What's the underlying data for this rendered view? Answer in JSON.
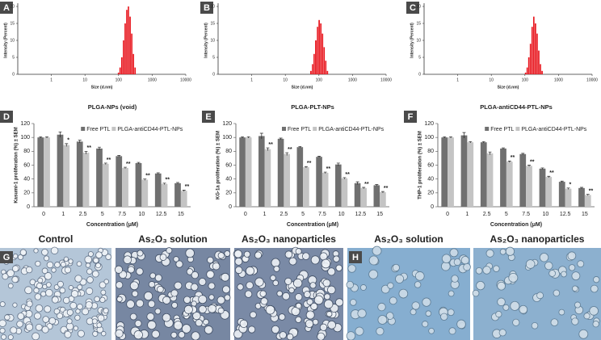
{
  "chart_data": [
    {
      "type": "histogram",
      "panel": "A",
      "xlabel": "Size (d.nm)",
      "ylabel": "Intensity (Percent)",
      "color": "#e8141c",
      "log_x": true,
      "xlim": [
        0.1,
        10000
      ],
      "xticks": [
        1,
        10,
        100,
        1000,
        10000
      ],
      "ylim": [
        0,
        20
      ],
      "yticks": [
        0,
        5,
        10,
        15,
        20
      ],
      "bins": [
        95,
        106,
        119,
        134,
        150,
        168,
        188,
        210,
        236,
        264,
        296,
        332
      ],
      "counts": [
        0.5,
        2,
        5,
        10,
        15,
        19,
        20,
        17,
        12,
        6,
        2
      ]
    },
    {
      "type": "histogram",
      "panel": "B",
      "xlabel": "Size (d.nm)",
      "ylabel": "Intensity (Percent)",
      "color": "#e8141c",
      "log_x": true,
      "xlim": [
        0.1,
        10000
      ],
      "xticks": [
        1,
        10,
        100,
        1000,
        10000
      ],
      "ylim": [
        0,
        20
      ],
      "yticks": [
        0,
        5,
        10,
        15,
        20
      ],
      "bins": [
        55,
        62,
        69,
        77,
        87,
        97,
        109,
        122,
        137,
        153,
        171,
        192
      ],
      "counts": [
        1,
        3,
        6,
        10,
        14,
        16,
        15,
        12,
        8,
        4,
        1
      ]
    },
    {
      "type": "histogram",
      "panel": "C",
      "xlabel": "Size (d.nm)",
      "ylabel": "Intensity (Percent)",
      "color": "#e8141c",
      "log_x": true,
      "xlim": [
        0.1,
        10000
      ],
      "xticks": [
        1,
        10,
        100,
        1000,
        10000
      ],
      "ylim": [
        0,
        20
      ],
      "yticks": [
        0,
        5,
        10,
        15,
        20
      ],
      "bins": [
        100,
        112,
        125,
        140,
        157,
        176,
        197,
        221,
        247,
        277,
        310,
        348
      ],
      "counts": [
        0.5,
        2,
        5,
        9,
        14,
        17,
        15,
        12,
        7,
        3,
        1
      ]
    },
    {
      "type": "bar",
      "panel": "D",
      "title": "PLGA-NPs (void)",
      "xlabel": "Concentration (μM)",
      "ylabel": "Kasumi-1 proliferation (%) ± SEM",
      "categories": [
        "0",
        "1",
        "2.5",
        "5",
        "7.5",
        "10",
        "12.5",
        "15"
      ],
      "ylim": [
        0,
        120
      ],
      "yticks": [
        0,
        20,
        40,
        60,
        80,
        100,
        120
      ],
      "series": [
        {
          "name": "Free PTL",
          "color": "#707070",
          "values": [
            100,
            104,
            94,
            84,
            73,
            63,
            48,
            34
          ],
          "errors": [
            1,
            4,
            2,
            2,
            1,
            1,
            1,
            1
          ]
        },
        {
          "name": "PLGA-antiCD44-PTL-NPs",
          "color": "#c4c4c4",
          "values": [
            100,
            89,
            78,
            62,
            56,
            39,
            33,
            23
          ],
          "errors": [
            1,
            2,
            2,
            1,
            1,
            1,
            1,
            1
          ],
          "annotations": [
            null,
            "*",
            "**",
            "**",
            "**",
            "**",
            "**",
            "**"
          ]
        }
      ]
    },
    {
      "type": "bar",
      "panel": "E",
      "title": "PLGA-PLT-NPs",
      "xlabel": "Concentration (μM)",
      "ylabel": "KG-1a proliferation (%) ± SEM",
      "categories": [
        "0",
        "1",
        "2.5",
        "5",
        "7.5",
        "10",
        "12.5",
        "15"
      ],
      "ylim": [
        0,
        120
      ],
      "yticks": [
        0,
        20,
        40,
        60,
        80,
        100,
        120
      ],
      "series": [
        {
          "name": "Free PTL",
          "color": "#707070",
          "values": [
            100,
            102,
            98,
            86,
            72,
            61,
            34,
            31
          ],
          "errors": [
            1,
            4,
            1,
            1,
            1,
            2,
            2,
            1
          ]
        },
        {
          "name": "PLGA-antiCD44-PTL-NPs",
          "color": "#c4c4c4",
          "values": [
            100,
            83,
            76,
            57,
            49,
            41,
            27,
            21
          ],
          "errors": [
            1,
            2,
            2,
            1,
            1,
            1,
            1,
            1
          ],
          "annotations": [
            null,
            "**",
            "**",
            "**",
            "**",
            "**",
            "**",
            "**"
          ]
        }
      ]
    },
    {
      "type": "bar",
      "panel": "F",
      "title": "PLGA-antiCD44-PTL-NPs",
      "xlabel": "Concentration (μM)",
      "ylabel": "THP-1 proliferation (%) ± SEM",
      "categories": [
        "0",
        "1",
        "2.5",
        "5",
        "7.5",
        "10",
        "12.5",
        "15"
      ],
      "ylim": [
        0,
        120
      ],
      "yticks": [
        0,
        20,
        40,
        60,
        80,
        100,
        120
      ],
      "series": [
        {
          "name": "Free PTL",
          "color": "#707070",
          "values": [
            100,
            103,
            93,
            84,
            76,
            55,
            36,
            27
          ],
          "errors": [
            1,
            4,
            1,
            1,
            1,
            1,
            1,
            1
          ]
        },
        {
          "name": "PLGA-antiCD44-PTL-NPs",
          "color": "#c4c4c4",
          "values": [
            100,
            93,
            77,
            65,
            59,
            43,
            26,
            17
          ],
          "errors": [
            1,
            1,
            2,
            1,
            1,
            1,
            1,
            1
          ],
          "annotations": [
            null,
            null,
            null,
            "**",
            "**",
            "**",
            "*",
            "**"
          ]
        }
      ]
    }
  ],
  "figure_images": [
    {
      "panel": "G",
      "captions": [
        "Control",
        "As₂O₃ solution",
        "As₂O₃ nanoparticles"
      ]
    },
    {
      "panel": "H",
      "captions": [
        "As₂O₃ solution",
        "As₂O₃ nanoparticles"
      ]
    }
  ]
}
